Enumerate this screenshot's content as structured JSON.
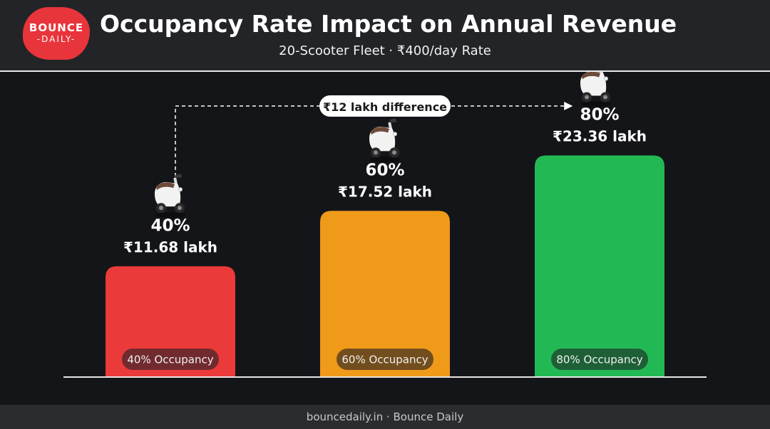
{
  "header": {
    "logo_top": "BOUNCE",
    "logo_bottom": "-DAILY-",
    "title": "Occupancy Rate Impact on Annual Revenue",
    "subtitle": "20-Scooter Fleet · ₹400/day Rate"
  },
  "colors": {
    "background": "#141518",
    "header_bg": "#222427",
    "logo": "#e8353b",
    "bar_40": "#ea3a3a",
    "bar_60": "#f09a1a",
    "bar_80": "#22b955"
  },
  "icons": {
    "scooter": "scooter-icon"
  },
  "chart_data": {
    "type": "bar",
    "title": "Occupancy Rate Impact on Annual Revenue",
    "subtitle": "20-Scooter Fleet · ₹400/day Rate",
    "categories": [
      "40% Occupancy",
      "60% Occupancy",
      "80% Occupancy"
    ],
    "occupancy_labels": [
      "40%",
      "60%",
      "80%"
    ],
    "values": [
      11.68,
      17.52,
      23.36
    ],
    "value_labels": [
      "₹11.68 lakh",
      "₹17.52 lakh",
      "₹23.36 lakh"
    ],
    "unit": "lakh",
    "ylim": [
      0,
      30
    ],
    "grid": false,
    "annotation": "₹12 lakh difference"
  },
  "footer": {
    "text": "bouncedaily.in · Bounce Daily"
  }
}
